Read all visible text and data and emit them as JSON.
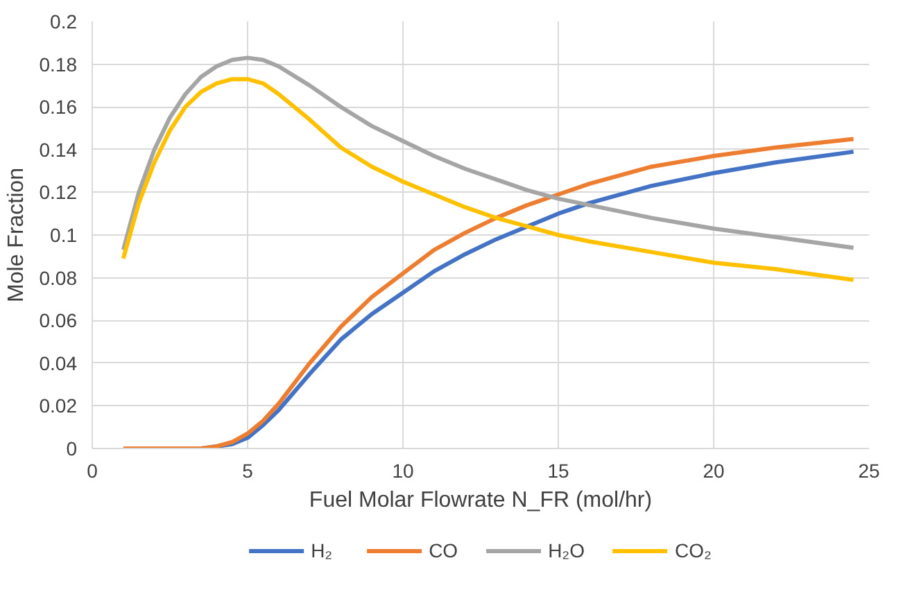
{
  "chart_data": {
    "type": "line",
    "xlabel": "Fuel Molar Flowrate N_FR (mol/hr)",
    "ylabel": "Mole Fraction",
    "xlim": [
      0,
      25
    ],
    "xticks": [
      0,
      5,
      10,
      15,
      20,
      25
    ],
    "ylim": [
      0,
      0.2
    ],
    "yticks": [
      0,
      0.02,
      0.04,
      0.06,
      0.08,
      0.1,
      0.12,
      0.14,
      0.16,
      0.18,
      0.2
    ],
    "grid": true,
    "legend": "bottom",
    "line_style": "solid",
    "x": [
      1,
      1.5,
      2,
      2.5,
      3,
      3.5,
      4,
      4.5,
      5,
      5.5,
      6,
      7,
      8,
      9,
      10,
      11,
      12,
      13,
      14,
      15,
      16,
      18,
      20,
      22,
      24.5
    ],
    "series": [
      {
        "name": "H₂",
        "color": "#4472c4",
        "x": [
          3.5,
          4,
          4.5,
          5,
          5.5,
          6,
          7,
          8,
          9,
          10,
          11,
          12,
          13,
          14,
          15,
          16,
          18,
          20,
          22,
          24.5
        ],
        "values": [
          0,
          0.001,
          0.002,
          0.005,
          0.011,
          0.018,
          0.035,
          0.051,
          0.063,
          0.073,
          0.083,
          0.091,
          0.098,
          0.104,
          0.11,
          0.115,
          0.123,
          0.129,
          0.134,
          0.139
        ]
      },
      {
        "name": "CO",
        "color": "#ed7d31",
        "values": [
          0,
          0,
          0,
          0,
          0,
          0,
          0.001,
          0.003,
          0.007,
          0.013,
          0.021,
          0.04,
          0.057,
          0.071,
          0.082,
          0.093,
          0.101,
          0.108,
          0.114,
          0.119,
          0.124,
          0.132,
          0.137,
          0.141,
          0.145
        ]
      },
      {
        "name": "H₂O",
        "color": "#a5a5a5",
        "values": [
          0.093,
          0.12,
          0.14,
          0.155,
          0.166,
          0.174,
          0.179,
          0.182,
          0.183,
          0.182,
          0.179,
          0.17,
          0.16,
          0.151,
          0.144,
          0.137,
          0.131,
          0.126,
          0.121,
          0.117,
          0.114,
          0.108,
          0.103,
          0.099,
          0.094
        ]
      },
      {
        "name": "CO₂",
        "color": "#ffc000",
        "values": [
          0.089,
          0.115,
          0.134,
          0.149,
          0.16,
          0.167,
          0.171,
          0.173,
          0.173,
          0.171,
          0.166,
          0.154,
          0.141,
          0.132,
          0.125,
          0.119,
          0.113,
          0.108,
          0.104,
          0.1,
          0.097,
          0.092,
          0.087,
          0.084,
          0.079
        ]
      }
    ]
  }
}
